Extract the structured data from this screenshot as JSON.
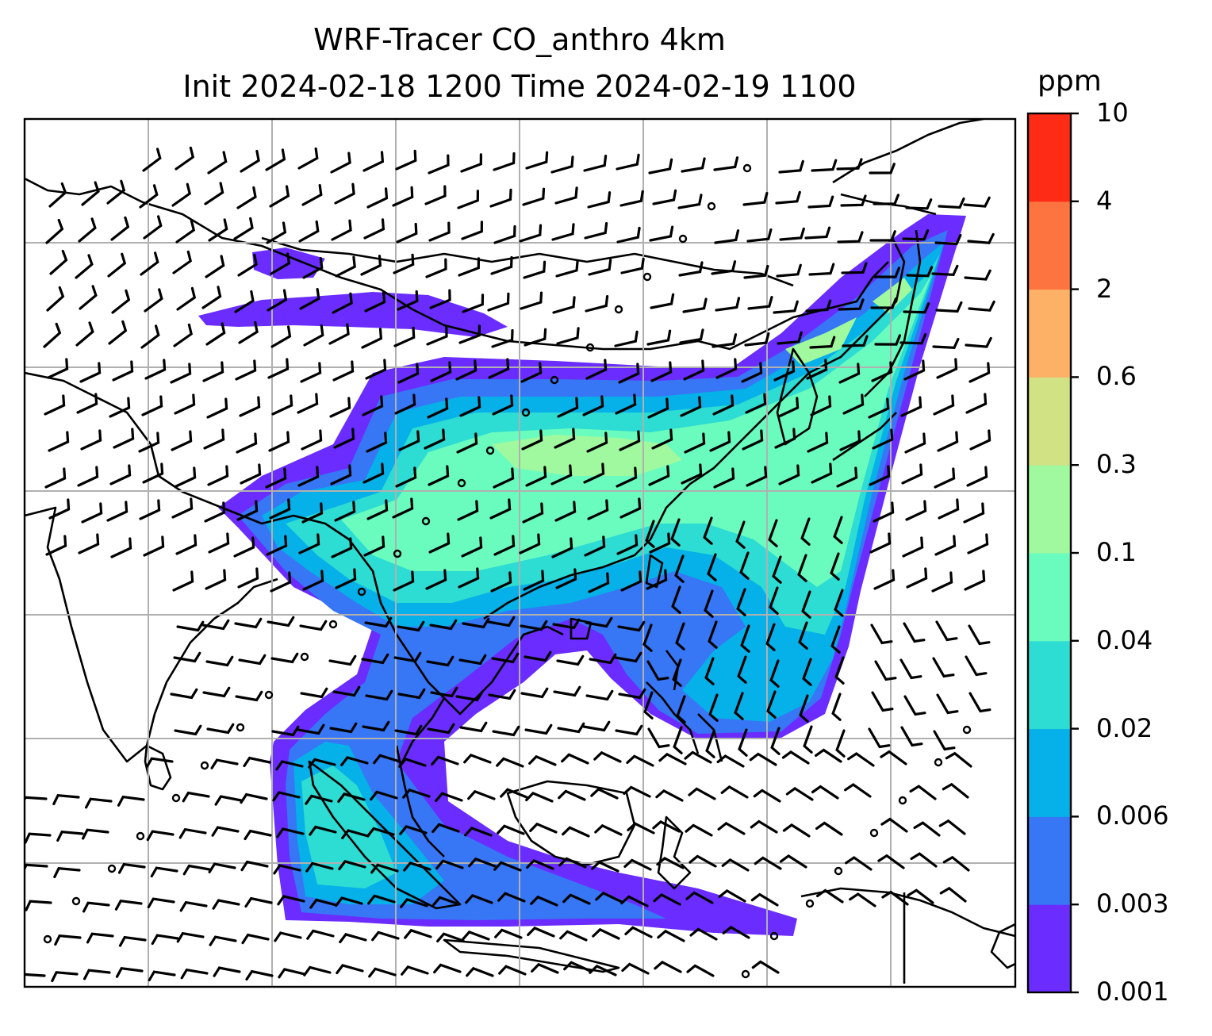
{
  "title": {
    "line1": "WRF-Tracer CO_anthro 4km",
    "line2": "Init 2024-02-18 1200 Time 2024-02-19 1100"
  },
  "colorbar": {
    "unit": "ppm",
    "ticks": [
      "0.001",
      "0.003",
      "0.006",
      "0.02",
      "0.04",
      "0.1",
      "0.3",
      "0.6",
      "2",
      "4",
      "10"
    ],
    "colors": [
      "#6a2cff",
      "#3776f5",
      "#06b0e8",
      "#2ddcd2",
      "#6afcbf",
      "#a0f99e",
      "#d1e285",
      "#fdb166",
      "#fd7440",
      "#fe2c16"
    ]
  },
  "map": {
    "field": "CO_anthro",
    "units": "ppm",
    "gridlines": true,
    "coastlines": true,
    "wind_barbs": true
  }
}
